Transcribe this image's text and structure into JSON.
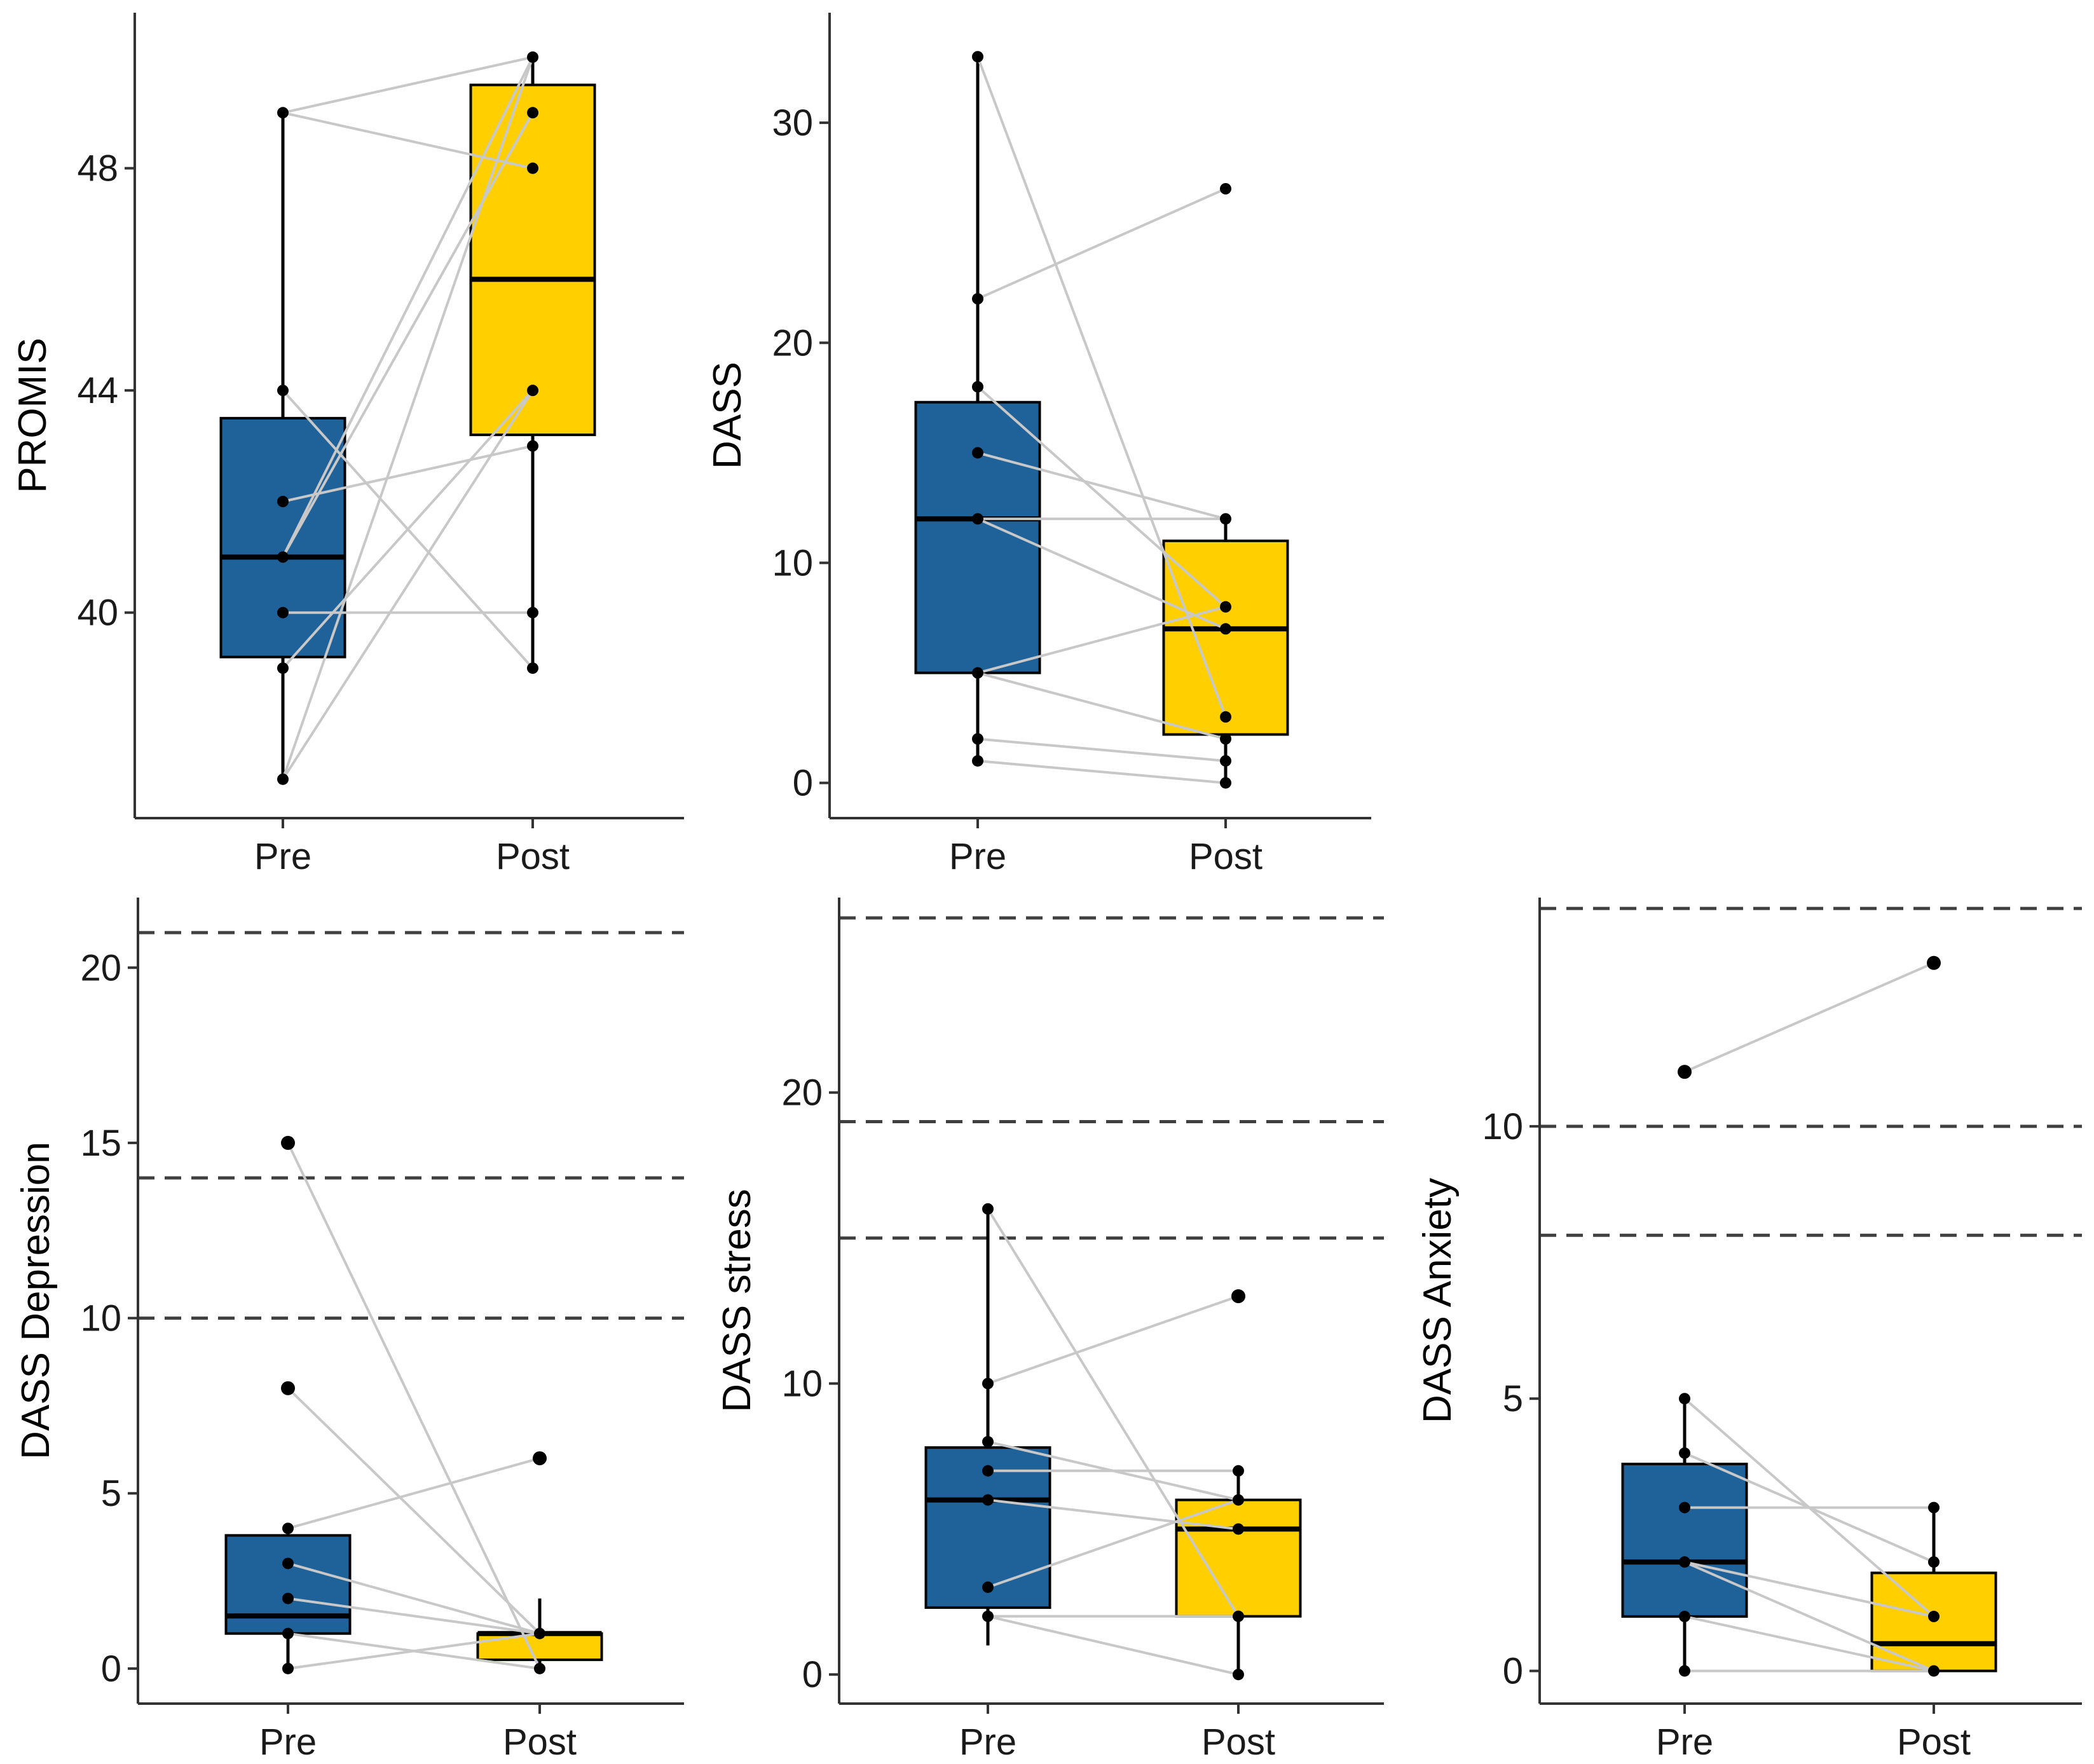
{
  "colors": {
    "pre": "#1F6199",
    "post": "#FFCF00",
    "pair_line": "#c8c8c8",
    "threshold": "#404040"
  },
  "chart_data": [
    {
      "id": "promis",
      "type": "box",
      "title": "",
      "xlabel": "",
      "ylabel": "PROMIS",
      "categories": [
        "Pre",
        "Post"
      ],
      "ylim": [
        36.3,
        50.8
      ],
      "yticks": [
        40,
        44,
        48
      ],
      "boxes": [
        {
          "group": "Pre",
          "q1": 39.2,
          "median": 41,
          "q3": 43.5,
          "min": 37,
          "max": 49
        },
        {
          "group": "Post",
          "q1": 43.2,
          "median": 46,
          "q3": 49.5,
          "min": 39,
          "max": 50
        }
      ],
      "pairs": [
        [
          49,
          50
        ],
        [
          49,
          48
        ],
        [
          44,
          39
        ],
        [
          42,
          43
        ],
        [
          41,
          50
        ],
        [
          41,
          49
        ],
        [
          40,
          40
        ],
        [
          39,
          44
        ],
        [
          37,
          50
        ],
        [
          37,
          44
        ]
      ],
      "thresholds": []
    },
    {
      "id": "dass",
      "type": "box",
      "title": "",
      "xlabel": "",
      "ylabel": "DASS",
      "categories": [
        "Pre",
        "Post"
      ],
      "ylim": [
        -1.6,
        35
      ],
      "yticks": [
        0,
        10,
        20,
        30
      ],
      "boxes": [
        {
          "group": "Pre",
          "q1": 5,
          "median": 12,
          "q3": 17.3,
          "min": 1,
          "max": 33
        },
        {
          "group": "Post",
          "q1": 2.2,
          "median": 7,
          "q3": 11,
          "min": 0,
          "max": 12
        }
      ],
      "pairs": [
        [
          33,
          3
        ],
        [
          22,
          27
        ],
        [
          18,
          8
        ],
        [
          15,
          12
        ],
        [
          12,
          12
        ],
        [
          12,
          7
        ],
        [
          5,
          8
        ],
        [
          5,
          2
        ],
        [
          2,
          1
        ],
        [
          1,
          0
        ]
      ],
      "thresholds": []
    },
    {
      "id": "dass-depression",
      "type": "box",
      "title": "",
      "xlabel": "",
      "ylabel": "DASS Depression",
      "categories": [
        "Pre",
        "Post"
      ],
      "ylim": [
        -1,
        22
      ],
      "yticks": [
        0,
        5,
        10,
        15,
        20
      ],
      "boxes": [
        {
          "group": "Pre",
          "q1": 1,
          "median": 1.5,
          "q3": 3.8,
          "min": 0,
          "max": 4
        },
        {
          "group": "Post",
          "q1": 0.25,
          "median": 1,
          "q3": 1,
          "min": 0,
          "max": 2
        }
      ],
      "pairs": [
        [
          15,
          0
        ],
        [
          8,
          1
        ],
        [
          4,
          6
        ],
        [
          3,
          1
        ],
        [
          2,
          1
        ],
        [
          1,
          0
        ],
        [
          0,
          1
        ]
      ],
      "outliers": [
        {
          "group": "Pre",
          "values": [
            8,
            15
          ]
        },
        {
          "group": "Post",
          "values": [
            6
          ]
        }
      ],
      "thresholds": [
        10,
        14,
        21
      ]
    },
    {
      "id": "dass-stress",
      "type": "box",
      "title": "",
      "xlabel": "",
      "ylabel": "DASS stress",
      "categories": [
        "Pre",
        "Post"
      ],
      "ylim": [
        -1,
        26.7
      ],
      "yticks": [
        0,
        10,
        20
      ],
      "boxes": [
        {
          "group": "Pre",
          "q1": 2.3,
          "median": 6,
          "q3": 7.8,
          "min": 1,
          "max": 16
        },
        {
          "group": "Post",
          "q1": 2,
          "median": 5,
          "q3": 6,
          "min": 0,
          "max": 7
        }
      ],
      "pairs": [
        [
          16,
          2
        ],
        [
          10,
          13
        ],
        [
          8,
          6
        ],
        [
          7,
          7
        ],
        [
          6,
          5
        ],
        [
          3,
          6
        ],
        [
          2,
          2
        ],
        [
          2,
          0
        ]
      ],
      "outliers": [
        {
          "group": "Post",
          "values": [
            13
          ]
        }
      ],
      "thresholds": [
        15,
        19,
        26
      ]
    },
    {
      "id": "dass-anxiety",
      "type": "box",
      "title": "",
      "xlabel": "",
      "ylabel": "DASS Anxiety",
      "categories": [
        "Pre",
        "Post"
      ],
      "ylim": [
        -0.6,
        14.2
      ],
      "yticks": [
        0,
        5,
        10
      ],
      "boxes": [
        {
          "group": "Pre",
          "q1": 1,
          "median": 2,
          "q3": 3.8,
          "min": 0,
          "max": 5
        },
        {
          "group": "Post",
          "q1": 0,
          "median": 0.5,
          "q3": 1.8,
          "min": 0,
          "max": 3
        }
      ],
      "pairs": [
        [
          11,
          13
        ],
        [
          5,
          1
        ],
        [
          4,
          2
        ],
        [
          3,
          3
        ],
        [
          2,
          1
        ],
        [
          2,
          0
        ],
        [
          1,
          0
        ],
        [
          0,
          0
        ]
      ],
      "outliers": [
        {
          "group": "Pre",
          "values": [
            11
          ]
        },
        {
          "group": "Post",
          "values": [
            13
          ]
        }
      ],
      "thresholds": [
        8,
        10,
        14
      ]
    }
  ]
}
